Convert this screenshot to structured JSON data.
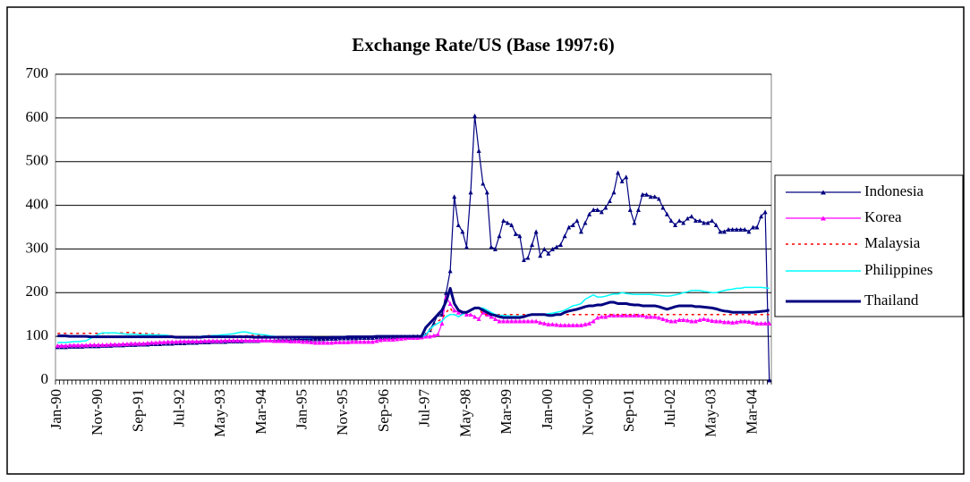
{
  "chart_data": {
    "type": "line",
    "title": "Exchange Rate/US (Base 1997:6)",
    "categories": [
      "Jan-90",
      null,
      null,
      null,
      null,
      null,
      null,
      null,
      null,
      null,
      "Nov-90",
      null,
      null,
      null,
      null,
      null,
      null,
      null,
      null,
      null,
      "Sep-91",
      null,
      null,
      null,
      null,
      null,
      null,
      null,
      null,
      null,
      "Jul-92",
      null,
      null,
      null,
      null,
      null,
      null,
      null,
      null,
      null,
      "May-93",
      null,
      null,
      null,
      null,
      null,
      null,
      null,
      null,
      null,
      "Mar-94",
      null,
      null,
      null,
      null,
      null,
      null,
      null,
      null,
      null,
      "Jan-95",
      null,
      null,
      null,
      null,
      null,
      null,
      null,
      null,
      null,
      "Nov-95",
      null,
      null,
      null,
      null,
      null,
      null,
      null,
      null,
      null,
      "Sep-96",
      null,
      null,
      null,
      null,
      null,
      null,
      null,
      null,
      null,
      "Jul-97",
      null,
      null,
      null,
      null,
      null,
      null,
      null,
      null,
      null,
      "May-98",
      null,
      null,
      null,
      null,
      null,
      null,
      null,
      null,
      null,
      "Mar-99",
      null,
      null,
      null,
      null,
      null,
      null,
      null,
      null,
      null,
      "Jan-00",
      null,
      null,
      null,
      null,
      null,
      null,
      null,
      null,
      null,
      "Nov-00",
      null,
      null,
      null,
      null,
      null,
      null,
      null,
      null,
      null,
      "Sep-01",
      null,
      null,
      null,
      null,
      null,
      null,
      null,
      null,
      null,
      "Jul-02",
      null,
      null,
      null,
      null,
      null,
      null,
      null,
      null,
      null,
      "May-03",
      null,
      null,
      null,
      null,
      null,
      null,
      null,
      null,
      null,
      "Mar-04",
      null,
      null,
      null,
      null
    ],
    "series": [
      {
        "name": "Indonesia",
        "color": "#000080",
        "width": 1.2,
        "marker": "triangle",
        "values": [
          76,
          76,
          76,
          77,
          77,
          77,
          77,
          78,
          78,
          78,
          78,
          79,
          79,
          79,
          80,
          80,
          80,
          81,
          81,
          81,
          82,
          82,
          82,
          83,
          83,
          83,
          84,
          84,
          84,
          85,
          85,
          85,
          86,
          86,
          86,
          87,
          87,
          87,
          88,
          88,
          88,
          88,
          89,
          89,
          89,
          89,
          90,
          90,
          90,
          90,
          91,
          91,
          91,
          91,
          92,
          92,
          92,
          92,
          93,
          93,
          93,
          93,
          94,
          94,
          94,
          94,
          95,
          95,
          95,
          96,
          96,
          96,
          96,
          96,
          97,
          97,
          97,
          97,
          98,
          98,
          98,
          98,
          99,
          99,
          99,
          99,
          99,
          100,
          100,
          100,
          104,
          115,
          130,
          150,
          150,
          200,
          250,
          420,
          355,
          340,
          305,
          430,
          605,
          525,
          450,
          430,
          305,
          300,
          330,
          365,
          360,
          355,
          335,
          330,
          275,
          280,
          310,
          340,
          285,
          300,
          290,
          300,
          305,
          310,
          330,
          350,
          355,
          365,
          340,
          360,
          380,
          390,
          390,
          385,
          395,
          410,
          430,
          475,
          455,
          465,
          390,
          360,
          390,
          425,
          425,
          420,
          420,
          415,
          395,
          380,
          365,
          355,
          365,
          360,
          370,
          375,
          365,
          365,
          360,
          360,
          365,
          355,
          340,
          340,
          345,
          345,
          345,
          345,
          345,
          340,
          350,
          350,
          375,
          385,
          0
        ]
      },
      {
        "name": "Korea",
        "color": "#ff00ff",
        "width": 1.2,
        "marker": "triangle",
        "values": [
          79,
          79,
          79,
          80,
          80,
          80,
          80,
          80,
          81,
          81,
          81,
          81,
          81,
          82,
          82,
          82,
          83,
          83,
          84,
          84,
          84,
          84,
          85,
          86,
          86,
          87,
          87,
          88,
          88,
          88,
          89,
          89,
          89,
          89,
          89,
          89,
          90,
          90,
          90,
          90,
          90,
          91,
          91,
          91,
          91,
          91,
          91,
          91,
          91,
          91,
          91,
          91,
          91,
          90,
          90,
          90,
          90,
          89,
          89,
          89,
          88,
          88,
          87,
          86,
          86,
          86,
          86,
          86,
          87,
          87,
          87,
          87,
          88,
          88,
          88,
          88,
          88,
          88,
          90,
          92,
          93,
          93,
          93,
          94,
          95,
          96,
          97,
          97,
          97,
          98,
          100,
          100,
          102,
          105,
          130,
          190,
          175,
          160,
          155,
          155,
          150,
          150,
          145,
          140,
          155,
          150,
          145,
          140,
          135,
          135,
          135,
          135,
          135,
          135,
          135,
          135,
          135,
          135,
          132,
          130,
          128,
          128,
          127,
          126,
          126,
          126,
          126,
          126,
          126,
          128,
          130,
          135,
          143,
          145,
          145,
          148,
          148,
          148,
          148,
          148,
          148,
          148,
          148,
          148,
          145,
          145,
          145,
          143,
          140,
          137,
          135,
          135,
          138,
          138,
          137,
          135,
          135,
          138,
          140,
          138,
          136,
          135,
          135,
          133,
          133,
          132,
          133,
          135,
          135,
          134,
          132,
          130,
          130,
          130,
          130
        ]
      },
      {
        "name": "Malaysia",
        "color": "#ff0000",
        "width": 1.5,
        "dash": "3,4",
        "values": [
          107,
          107,
          107,
          107,
          107,
          107,
          107,
          107,
          107,
          107,
          107,
          107,
          107,
          108,
          108,
          108,
          108,
          109,
          109,
          108,
          107,
          107,
          106,
          106,
          105,
          104,
          103,
          102,
          101,
          100,
          99,
          98,
          98,
          99,
          100,
          100,
          101,
          102,
          102,
          101,
          100,
          100,
          101,
          101,
          101,
          101,
          101,
          102,
          102,
          103,
          102,
          101,
          100,
          99,
          99,
          99,
          99,
          99,
          99,
          99,
          98,
          98,
          98,
          98,
          98,
          97,
          97,
          97,
          97,
          98,
          99,
          99,
          99,
          99,
          99,
          99,
          99,
          99,
          99,
          99,
          99,
          100,
          100,
          100,
          100,
          100,
          100,
          100,
          100,
          100,
          102,
          110,
          125,
          135,
          140,
          155,
          165,
          150,
          145,
          150,
          155,
          160,
          165,
          165,
          150,
          150,
          150,
          150,
          150,
          150,
          150,
          150,
          150,
          150,
          150,
          150,
          150,
          150,
          150,
          150,
          150,
          150,
          150,
          150,
          150,
          150,
          150,
          150,
          150,
          150,
          150,
          150,
          150,
          150,
          150,
          150,
          150,
          150,
          150,
          150,
          150,
          150,
          150,
          150,
          150,
          150,
          150,
          150,
          150,
          150,
          150,
          150,
          150,
          150,
          150,
          150,
          150,
          150,
          150,
          150,
          150,
          150,
          150,
          150,
          150,
          150,
          150,
          150,
          150,
          150,
          150,
          150,
          150,
          150,
          150
        ]
      },
      {
        "name": "Philippines",
        "color": "#00ffff",
        "width": 1.5,
        "values": [
          86,
          86,
          86,
          87,
          88,
          88,
          89,
          90,
          95,
          100,
          105,
          108,
          108,
          108,
          108,
          107,
          106,
          105,
          105,
          105,
          104,
          104,
          104,
          104,
          103,
          103,
          103,
          102,
          100,
          98,
          97,
          97,
          97,
          98,
          99,
          100,
          101,
          101,
          102,
          102,
          103,
          104,
          105,
          106,
          108,
          110,
          110,
          108,
          106,
          105,
          104,
          103,
          101,
          100,
          99,
          98,
          97,
          97,
          97,
          97,
          96,
          96,
          96,
          96,
          96,
          97,
          97,
          98,
          98,
          99,
          99,
          99,
          99,
          99,
          99,
          99,
          99,
          99,
          99,
          99,
          99,
          99,
          99,
          99,
          99,
          99,
          99,
          99,
          99,
          99,
          103,
          115,
          125,
          130,
          135,
          145,
          150,
          150,
          145,
          150,
          155,
          160,
          165,
          165,
          165,
          160,
          155,
          150,
          148,
          148,
          147,
          146,
          146,
          146,
          147,
          147,
          150,
          150,
          150,
          150,
          152,
          153,
          155,
          157,
          160,
          165,
          170,
          172,
          175,
          185,
          190,
          195,
          190,
          190,
          192,
          195,
          197,
          197,
          200,
          198,
          197,
          196,
          196,
          196,
          196,
          196,
          195,
          194,
          193,
          192,
          193,
          195,
          197,
          200,
          202,
          205,
          205,
          205,
          203,
          202,
          200,
          200,
          203,
          205,
          207,
          208,
          210,
          210,
          212,
          212,
          212,
          212,
          212,
          211,
          210
        ]
      },
      {
        "name": "Thailand",
        "color": "#000080",
        "width": 3,
        "values": [
          101,
          101,
          101,
          100,
          100,
          100,
          100,
          100,
          99,
          99,
          99,
          99,
          99,
          99,
          99,
          99,
          99,
          99,
          99,
          99,
          99,
          99,
          99,
          99,
          99,
          99,
          99,
          99,
          99,
          98,
          98,
          98,
          98,
          98,
          98,
          98,
          99,
          99,
          99,
          99,
          99,
          99,
          99,
          99,
          99,
          99,
          99,
          99,
          98,
          98,
          98,
          98,
          98,
          98,
          98,
          98,
          98,
          98,
          98,
          98,
          98,
          98,
          98,
          97,
          97,
          97,
          97,
          98,
          98,
          98,
          98,
          99,
          99,
          99,
          99,
          99,
          99,
          99,
          100,
          100,
          100,
          100,
          100,
          100,
          100,
          100,
          100,
          100,
          100,
          100,
          120,
          130,
          140,
          150,
          160,
          180,
          210,
          175,
          160,
          155,
          155,
          160,
          165,
          165,
          160,
          155,
          150,
          148,
          145,
          143,
          143,
          143,
          143,
          143,
          145,
          148,
          150,
          150,
          150,
          150,
          148,
          148,
          150,
          150,
          155,
          158,
          160,
          162,
          165,
          168,
          170,
          170,
          172,
          172,
          175,
          178,
          178,
          175,
          175,
          175,
          173,
          172,
          172,
          170,
          170,
          170,
          170,
          168,
          165,
          162,
          165,
          168,
          170,
          170,
          170,
          170,
          168,
          168,
          167,
          166,
          165,
          163,
          160,
          158,
          157,
          155,
          155,
          155,
          155,
          155,
          155,
          156,
          157,
          158,
          160
        ]
      }
    ],
    "ylim": [
      0,
      700
    ],
    "yticks": [
      0,
      100,
      200,
      300,
      400,
      500,
      600,
      700
    ],
    "grid": true,
    "legend": "right"
  }
}
